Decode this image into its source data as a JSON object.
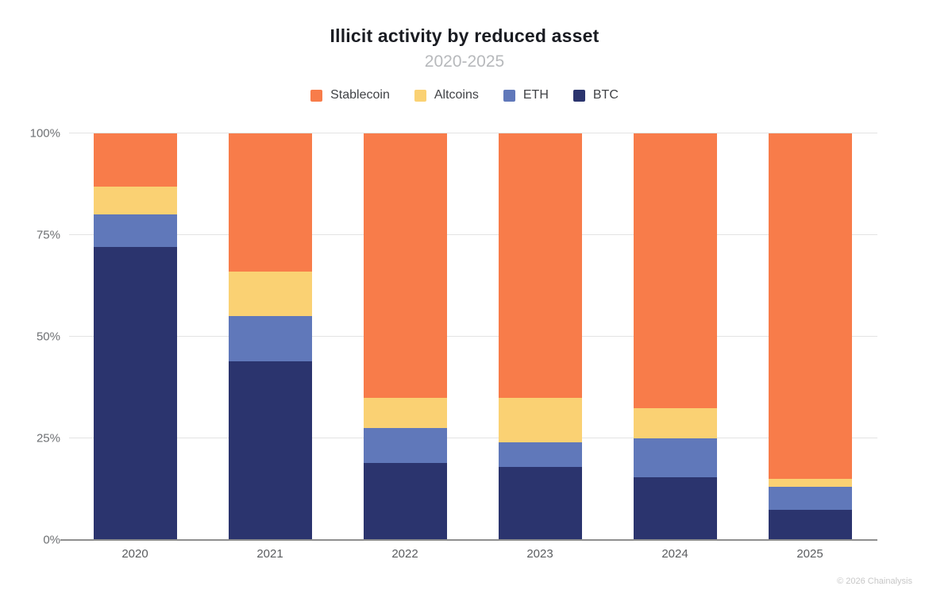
{
  "header": {
    "title": "Illicit activity by reduced asset",
    "subtitle": "2020-2025"
  },
  "legend": [
    {
      "label": "Stablecoin",
      "color": "#F87C4A"
    },
    {
      "label": "Altcoins",
      "color": "#FAD173"
    },
    {
      "label": "ETH",
      "color": "#6078BA"
    },
    {
      "label": "BTC",
      "color": "#2B346E"
    }
  ],
  "chart_data": {
    "type": "bar",
    "stacked": true,
    "percent_stacked": true,
    "title": "Illicit activity by reduced asset",
    "subtitle": "2020-2025",
    "categories": [
      "2020",
      "2021",
      "2022",
      "2023",
      "2024",
      "2025"
    ],
    "series": [
      {
        "name": "BTC",
        "color": "#2B346E",
        "values": [
          72,
          44,
          19,
          18,
          15.5,
          7.5
        ]
      },
      {
        "name": "ETH",
        "color": "#6078BA",
        "values": [
          8,
          11,
          8.5,
          6,
          9.5,
          5.5
        ]
      },
      {
        "name": "Altcoins",
        "color": "#FAD173",
        "values": [
          7,
          11,
          7.5,
          11,
          7.5,
          2
        ]
      },
      {
        "name": "Stablecoin",
        "color": "#F87C4A",
        "values": [
          13,
          34,
          65,
          65,
          67.5,
          85
        ]
      }
    ],
    "xlabel": "",
    "ylabel": "",
    "ylim": [
      0,
      100
    ],
    "y_ticks": [
      {
        "label": "0%",
        "value": 0
      },
      {
        "label": "25%",
        "value": 25
      },
      {
        "label": "50%",
        "value": 50
      },
      {
        "label": "75%",
        "value": 75
      },
      {
        "label": "100%",
        "value": 100
      }
    ],
    "grid": true,
    "legend_position": "top"
  },
  "footer": {
    "credit": "© 2026 Chainalysis"
  }
}
